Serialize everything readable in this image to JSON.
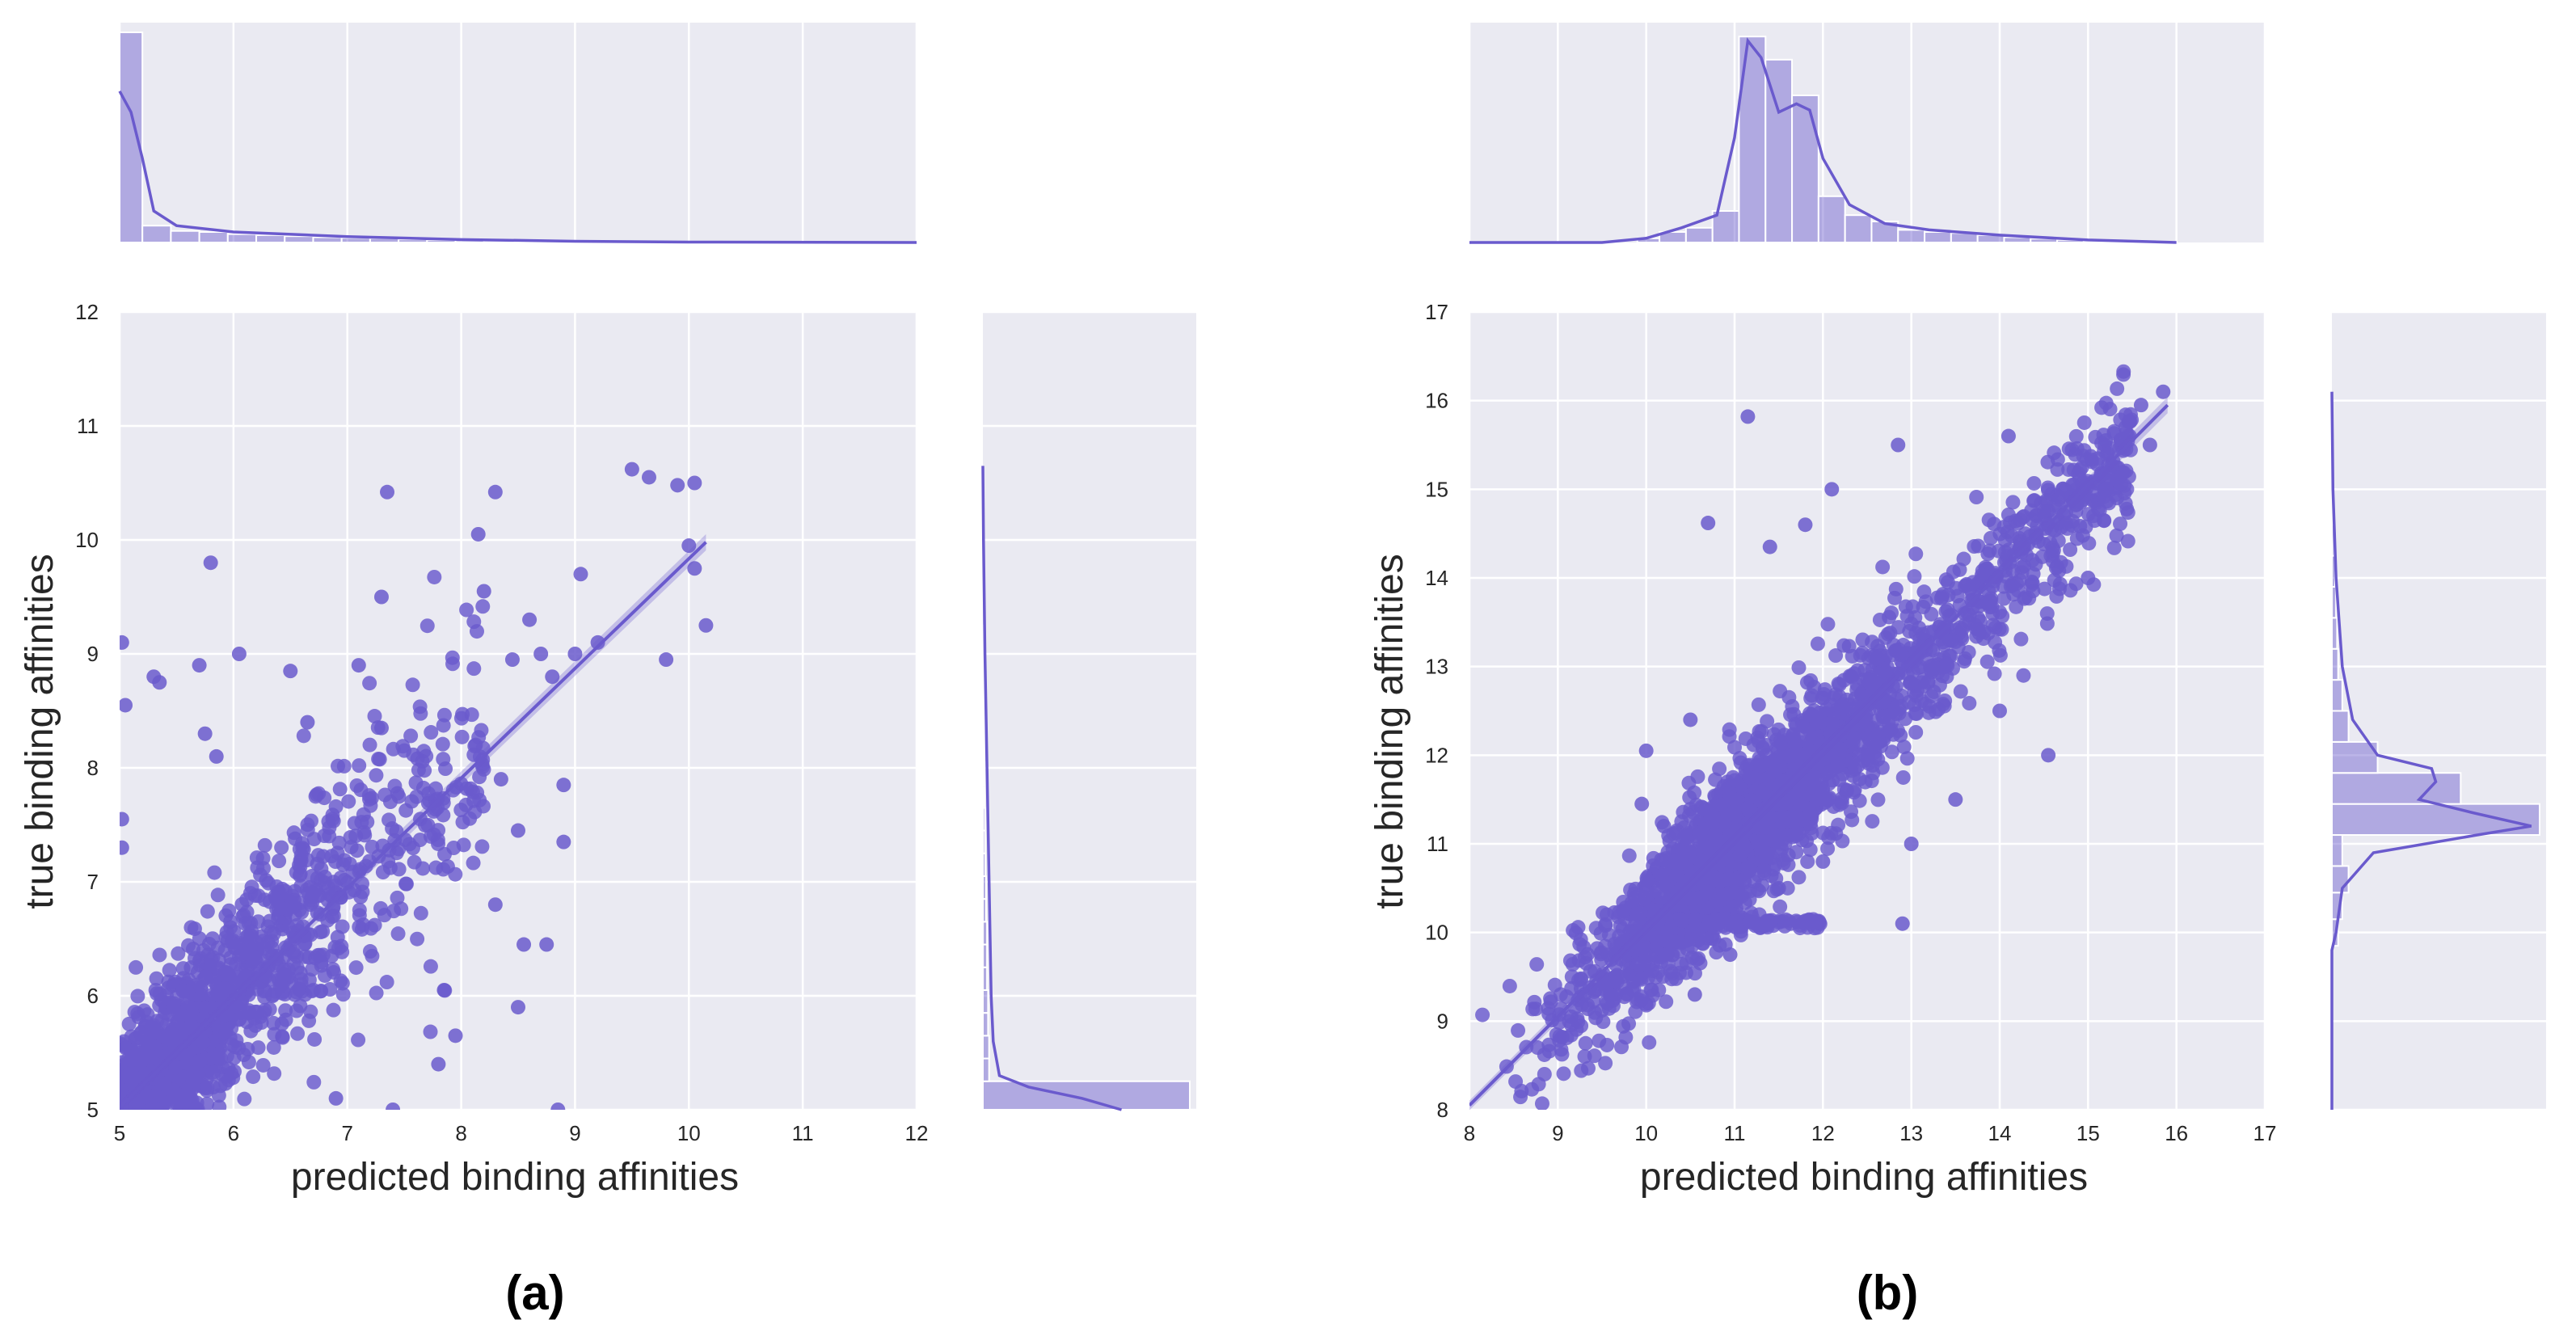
{
  "colors": {
    "background": "#eaeaf2",
    "grid": "#ffffff",
    "point": "#6a5acd",
    "bar": "#6a5acd"
  },
  "chart_data": [
    {
      "id": "a",
      "type": "scatter",
      "panel_label": "(a)",
      "xlabel": "predicted binding affinities",
      "ylabel": "true binding affinities",
      "xlim": [
        5,
        12
      ],
      "ylim": [
        5,
        12
      ],
      "xticks": [
        5,
        6,
        7,
        8,
        9,
        10,
        11,
        12
      ],
      "yticks": [
        5,
        6,
        7,
        8,
        9,
        10,
        11,
        12
      ],
      "regression_line": {
        "x": [
          5.0,
          10.15
        ],
        "y": [
          5.02,
          9.98
        ]
      },
      "points": [
        [
          5.02,
          9.1
        ],
        [
          5.05,
          8.55
        ],
        [
          5.02,
          7.55
        ],
        [
          5.02,
          7.3
        ],
        [
          5.3,
          8.8
        ],
        [
          5.35,
          8.75
        ],
        [
          5.8,
          9.8
        ],
        [
          5.7,
          8.9
        ],
        [
          5.75,
          8.3
        ],
        [
          7.35,
          10.42
        ],
        [
          8.3,
          10.42
        ],
        [
          8.15,
          10.05
        ],
        [
          9.5,
          10.62
        ],
        [
          9.65,
          10.55
        ],
        [
          9.9,
          10.48
        ],
        [
          10.05,
          10.5
        ],
        [
          10.0,
          9.95
        ],
        [
          10.05,
          9.75
        ],
        [
          9.8,
          8.95
        ],
        [
          10.15,
          9.25
        ],
        [
          8.2,
          9.55
        ],
        [
          7.3,
          9.5
        ],
        [
          8.45,
          8.95
        ],
        [
          8.6,
          9.3
        ],
        [
          9.05,
          9.7
        ],
        [
          8.9,
          7.85
        ],
        [
          8.35,
          7.9
        ],
        [
          8.5,
          7.45
        ],
        [
          8.9,
          7.35
        ],
        [
          8.3,
          6.8
        ],
        [
          8.55,
          6.45
        ],
        [
          8.75,
          6.45
        ],
        [
          7.85,
          6.05
        ],
        [
          8.85,
          5.0
        ],
        [
          7.95,
          5.65
        ],
        [
          7.4,
          5.0
        ],
        [
          6.9,
          5.1
        ],
        [
          7.8,
          5.4
        ],
        [
          8.5,
          5.9
        ],
        [
          6.05,
          9.0
        ],
        [
          5.85,
          8.1
        ],
        [
          6.5,
          8.85
        ],
        [
          6.65,
          8.4
        ],
        [
          7.1,
          8.9
        ],
        [
          7.3,
          8.35
        ],
        [
          9.0,
          9.0
        ],
        [
          8.8,
          8.8
        ],
        [
          8.7,
          9.0
        ],
        [
          9.2,
          9.1
        ]
      ],
      "marginal_top": {
        "bins": [
          5.0,
          5.2,
          5.45,
          5.7,
          5.95,
          6.2,
          6.45,
          6.7,
          6.95,
          7.2,
          7.45,
          7.7,
          7.95,
          8.2,
          8.45,
          8.7,
          8.95,
          9.2,
          9.45,
          9.7,
          9.95,
          10.2
        ],
        "heights": [
          1.0,
          0.08,
          0.055,
          0.05,
          0.04,
          0.035,
          0.03,
          0.025,
          0.022,
          0.02,
          0.015,
          0.012,
          0.01,
          0.008,
          0.007,
          0.006,
          0.005,
          0.004,
          0.003,
          0.002,
          0.002
        ],
        "kde": [
          [
            5.0,
            0.72
          ],
          [
            5.1,
            0.62
          ],
          [
            5.2,
            0.4
          ],
          [
            5.3,
            0.15
          ],
          [
            5.5,
            0.08
          ],
          [
            6.0,
            0.05
          ],
          [
            7.0,
            0.028
          ],
          [
            8.0,
            0.014
          ],
          [
            9.0,
            0.006
          ],
          [
            10.0,
            0.002
          ],
          [
            12.0,
            0.0
          ]
        ]
      },
      "marginal_right": {
        "bins": [
          5.0,
          5.25,
          5.45,
          5.65,
          5.85,
          6.05,
          6.25,
          6.45,
          6.65,
          6.85,
          7.05,
          7.25,
          7.45,
          7.65,
          7.85,
          8.05,
          8.25,
          8.45,
          8.65,
          8.85,
          9.05,
          9.25
        ],
        "heights": [
          1.0,
          0.03,
          0.03,
          0.025,
          0.025,
          0.02,
          0.02,
          0.02,
          0.015,
          0.015,
          0.012,
          0.01,
          0.01,
          0.008,
          0.008,
          0.006,
          0.006,
          0.005,
          0.004,
          0.004,
          0.003
        ],
        "kde": [
          [
            5.0,
            0.67
          ],
          [
            5.1,
            0.48
          ],
          [
            5.2,
            0.22
          ],
          [
            5.3,
            0.08
          ],
          [
            5.6,
            0.05
          ],
          [
            6.0,
            0.04
          ],
          [
            7.0,
            0.03
          ],
          [
            8.0,
            0.02
          ],
          [
            9.0,
            0.01
          ],
          [
            10.0,
            0.003
          ],
          [
            10.65,
            0.0
          ]
        ]
      }
    },
    {
      "id": "b",
      "type": "scatter",
      "panel_label": "(b)",
      "xlabel": "predicted binding affinities",
      "ylabel": "true binding affinities",
      "xlim": [
        8,
        17
      ],
      "ylim": [
        8,
        17
      ],
      "xticks": [
        8,
        9,
        10,
        11,
        12,
        13,
        14,
        15,
        16,
        17
      ],
      "yticks": [
        8,
        9,
        10,
        11,
        12,
        13,
        14,
        15,
        16,
        17
      ],
      "regression_line": {
        "x": [
          8.0,
          15.9
        ],
        "y": [
          8.05,
          15.95
        ]
      },
      "points": [
        [
          11.15,
          15.82
        ],
        [
          10.7,
          14.62
        ],
        [
          12.1,
          12.0
        ],
        [
          14.55,
          12.0
        ],
        [
          12.9,
          10.1
        ],
        [
          10.95,
          9.75
        ],
        [
          10.55,
          9.3
        ],
        [
          9.05,
          8.82
        ],
        [
          9.15,
          9.05
        ],
        [
          9.3,
          9.3
        ],
        [
          9.5,
          9.5
        ],
        [
          15.85,
          16.1
        ],
        [
          15.6,
          15.95
        ],
        [
          15.2,
          15.55
        ],
        [
          12.85,
          15.5
        ],
        [
          12.1,
          15.0
        ],
        [
          14.1,
          15.6
        ],
        [
          15.7,
          15.5
        ],
        [
          10.0,
          12.05
        ],
        [
          9.95,
          11.45
        ],
        [
          11.4,
          14.35
        ],
        [
          13.0,
          11.0
        ],
        [
          13.5,
          11.5
        ],
        [
          14.0,
          12.5
        ],
        [
          15.0,
          14.0
        ],
        [
          11.5,
          10.5
        ],
        [
          12.0,
          10.8
        ],
        [
          10.2,
          11.2
        ],
        [
          10.5,
          12.4
        ],
        [
          11.8,
          14.6
        ]
      ],
      "marginal_top": {
        "bins": [
          8.0,
          9.9,
          10.15,
          10.45,
          10.75,
          11.05,
          11.35,
          11.65,
          11.95,
          12.25,
          12.55,
          12.85,
          13.15,
          13.45,
          13.75,
          14.05,
          14.35,
          14.65,
          14.95,
          15.25,
          15.55,
          15.85
        ],
        "heights": [
          0.0,
          0.02,
          0.05,
          0.07,
          0.15,
          0.98,
          0.87,
          0.7,
          0.22,
          0.13,
          0.1,
          0.06,
          0.05,
          0.045,
          0.035,
          0.025,
          0.018,
          0.012,
          0.008,
          0.004,
          0.002
        ],
        "kde": [
          [
            8.0,
            0.0
          ],
          [
            9.5,
            0.0
          ],
          [
            10.0,
            0.02
          ],
          [
            10.4,
            0.07
          ],
          [
            10.8,
            0.13
          ],
          [
            11.0,
            0.5
          ],
          [
            11.15,
            0.96
          ],
          [
            11.3,
            0.88
          ],
          [
            11.5,
            0.62
          ],
          [
            11.7,
            0.66
          ],
          [
            11.85,
            0.63
          ],
          [
            12.0,
            0.4
          ],
          [
            12.3,
            0.18
          ],
          [
            12.7,
            0.09
          ],
          [
            13.2,
            0.06
          ],
          [
            14.0,
            0.035
          ],
          [
            15.0,
            0.012
          ],
          [
            16.0,
            0.0
          ]
        ]
      },
      "marginal_right": {
        "bins": [
          8.0,
          9.85,
          10.15,
          10.45,
          10.75,
          11.1,
          11.45,
          11.8,
          12.15,
          12.5,
          12.85,
          13.2,
          13.55,
          13.9,
          14.25,
          14.6,
          14.95,
          15.3
        ],
        "heights": [
          0.0,
          0.03,
          0.05,
          0.08,
          0.05,
          1.0,
          0.62,
          0.22,
          0.08,
          0.05,
          0.03,
          0.025,
          0.02,
          0.015,
          0.01,
          0.005,
          0.003
        ],
        "kde": [
          [
            8.0,
            0.0
          ],
          [
            9.8,
            0.0
          ],
          [
            10.0,
            0.02
          ],
          [
            10.5,
            0.05
          ],
          [
            10.9,
            0.2
          ],
          [
            11.1,
            0.7
          ],
          [
            11.2,
            0.96
          ],
          [
            11.35,
            0.68
          ],
          [
            11.5,
            0.42
          ],
          [
            11.7,
            0.5
          ],
          [
            11.85,
            0.48
          ],
          [
            12.0,
            0.22
          ],
          [
            12.4,
            0.1
          ],
          [
            13.0,
            0.05
          ],
          [
            14.0,
            0.02
          ],
          [
            15.0,
            0.005
          ],
          [
            16.1,
            0.0
          ]
        ]
      }
    }
  ]
}
